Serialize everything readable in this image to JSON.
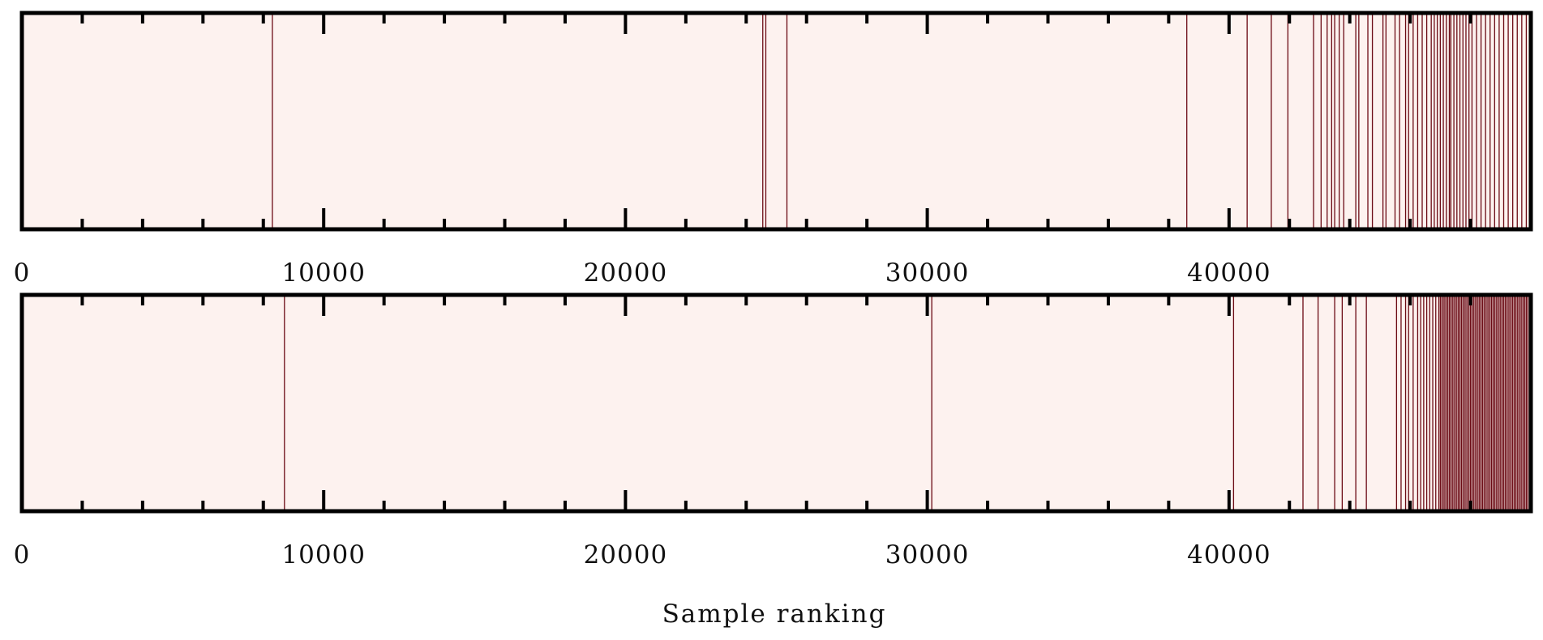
{
  "chart_data": {
    "type": "heatmap",
    "xlabel": "Sample ranking",
    "xlim": [
      0,
      50000
    ],
    "major_ticks": [
      0,
      10000,
      20000,
      30000,
      40000
    ],
    "tick_labels": [
      "0",
      "10000",
      "20000",
      "30000",
      "40000"
    ],
    "minor_tick_step": 2000,
    "colors": {
      "background": "#fdf2ef",
      "event": "#6b0a14",
      "frame": "#000000"
    },
    "panels": [
      {
        "name": "top",
        "events": [
          8300,
          24550,
          24650,
          25350,
          38600,
          40600,
          41400,
          41950,
          42800,
          43050,
          43250,
          43400,
          43500,
          43650,
          43800,
          44200,
          44300,
          44600,
          44750,
          45100,
          45200,
          45500,
          45650,
          45850,
          45950,
          46100,
          46250,
          46400,
          46550,
          46700,
          46800,
          46900,
          47000,
          47100,
          47200,
          47300,
          47350,
          47450,
          47550,
          47650,
          47750,
          47850,
          47950,
          48050,
          48200,
          48350,
          48500,
          48650,
          48800,
          48950,
          49100,
          49250,
          49400,
          49550,
          49700,
          49850,
          49950
        ]
      },
      {
        "name": "bottom",
        "events": [
          8700,
          30150,
          40150,
          42450,
          42950,
          43500,
          43750,
          44200,
          44550,
          45550,
          45700,
          45850,
          45950,
          46100,
          46250,
          46350,
          46450,
          46550,
          46650,
          46750,
          46850,
          46950,
          47000,
          47050,
          47100,
          47150,
          47200,
          47250,
          47300,
          47350,
          47400,
          47450,
          47500,
          47550,
          47600,
          47650,
          47700,
          47750,
          47800,
          47850,
          47900,
          47950,
          48000,
          48050,
          48100,
          48150,
          48200,
          48250,
          48300,
          48350,
          48400,
          48450,
          48500,
          48550,
          48600,
          48650,
          48700,
          48750,
          48800,
          48850,
          48900,
          48950,
          49000,
          49050,
          49100,
          49150,
          49200,
          49250,
          49300,
          49350,
          49400,
          49450,
          49500,
          49550,
          49600,
          49650,
          49700,
          49750,
          49800,
          49850,
          49900,
          49950
        ]
      }
    ]
  }
}
